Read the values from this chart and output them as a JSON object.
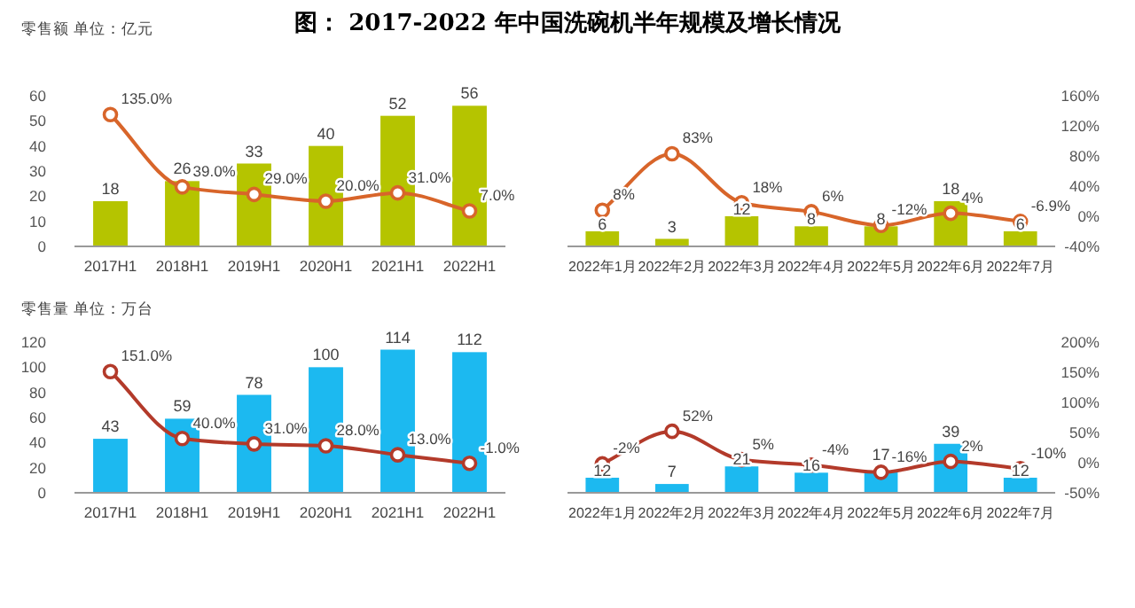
{
  "chart_data": [
    {
      "type": "bar",
      "title": "图：  2017-2022 年中国洗碗机半年规模及增长情况",
      "ylabel": "零售额 单位：亿元",
      "categories": [
        "2017H1",
        "2018H1",
        "2019H1",
        "2020H1",
        "2021H1",
        "2022H1"
      ],
      "series": [
        {
          "color": "#b5c400",
          "values": [
            18,
            26,
            33,
            40,
            52,
            56
          ],
          "value_labels": [
            "18",
            "26",
            "33",
            "40",
            "52",
            "56"
          ]
        },
        {
          "type": "line",
          "axis": "y2",
          "color": "#d8652a",
          "values": [
            135,
            39,
            29,
            20,
            31,
            7
          ],
          "value_labels": [
            "135.0%",
            "39.0%",
            "29.0%",
            "20.0%",
            "31.0%",
            "7.0%"
          ]
        }
      ],
      "ylim": [
        0,
        60
      ],
      "yticks": [
        0,
        10,
        20,
        30,
        40,
        50,
        60
      ],
      "y2lim": [
        -40,
        160
      ],
      "tick_labels": [
        "x",
        "y"
      ],
      "marker": "circle"
    },
    {
      "type": "bar",
      "categories": [
        "2022年1月",
        "2022年2月",
        "2022年3月",
        "2022年4月",
        "2022年5月",
        "2022年6月",
        "2022年7月"
      ],
      "series": [
        {
          "color": "#b5c400",
          "values": [
            6,
            3,
            12,
            8,
            8,
            18,
            6
          ],
          "value_labels": [
            "6",
            "3",
            "12",
            "8",
            "8",
            "18",
            "6"
          ]
        },
        {
          "type": "line",
          "axis": "y2",
          "color": "#d8652a",
          "values": [
            8,
            83,
            18,
            6,
            -12,
            4,
            -6.9
          ],
          "value_labels": [
            "8%",
            "83%",
            "18%",
            "6%",
            "-12%",
            "4%",
            "-6.9%"
          ]
        }
      ],
      "ylim": [
        0,
        60
      ],
      "y2lim": [
        -40,
        160
      ],
      "y2ticks": [
        {
          "value": -40,
          "label": "-40%"
        },
        {
          "value": 0,
          "label": "0%"
        },
        {
          "value": 40,
          "label": "40%"
        },
        {
          "value": 80,
          "label": "80%"
        },
        {
          "value": 120,
          "label": "120%"
        },
        {
          "value": 160,
          "label": "160%"
        }
      ],
      "tick_labels": [
        "x",
        "y2"
      ],
      "marker": "circle"
    },
    {
      "type": "bar",
      "ylabel": "零售量 单位：万台",
      "categories": [
        "2017H1",
        "2018H1",
        "2019H1",
        "2020H1",
        "2021H1",
        "2022H1"
      ],
      "series": [
        {
          "color": "#1cb9f0",
          "values": [
            43,
            59,
            78,
            100,
            114,
            112
          ],
          "value_labels": [
            "43",
            "59",
            "78",
            "100",
            "114",
            "112"
          ]
        },
        {
          "type": "line",
          "axis": "y2",
          "color": "#b33a2a",
          "values": [
            151,
            40,
            31,
            28,
            13,
            -1
          ],
          "value_labels": [
            "151.0%",
            "40.0%",
            "31.0%",
            "28.0%",
            "13.0%",
            "-1.0%"
          ]
        }
      ],
      "ylim": [
        0,
        120
      ],
      "yticks": [
        0,
        20,
        40,
        60,
        80,
        100,
        120
      ],
      "y2lim": [
        -50,
        200
      ],
      "tick_labels": [
        "x",
        "y"
      ],
      "marker": "circle"
    },
    {
      "type": "bar",
      "categories": [
        "2022年1月",
        "2022年2月",
        "2022年3月",
        "2022年4月",
        "2022年5月",
        "2022年6月",
        "2022年7月"
      ],
      "series": [
        {
          "color": "#1cb9f0",
          "values": [
            12,
            7,
            21,
            16,
            17,
            39,
            12
          ],
          "value_labels": [
            "12",
            "7",
            "21",
            "16",
            "17",
            "39",
            "12"
          ]
        },
        {
          "type": "line",
          "axis": "y2",
          "color": "#b33a2a",
          "values": [
            -2,
            52,
            5,
            -4,
            -16,
            2,
            -10
          ],
          "value_labels": [
            "-2%",
            "52%",
            "5%",
            "-4%",
            "-16%",
            "2%",
            "-10%"
          ]
        }
      ],
      "ylim": [
        0,
        120
      ],
      "y2lim": [
        -50,
        200
      ],
      "y2ticks": [
        {
          "value": -50,
          "label": "-50%"
        },
        {
          "value": 0,
          "label": "0%"
        },
        {
          "value": 50,
          "label": "50%"
        },
        {
          "value": 100,
          "label": "100%"
        },
        {
          "value": 150,
          "label": "150%"
        },
        {
          "value": 200,
          "label": "200%"
        }
      ],
      "tick_labels": [
        "x",
        "y2"
      ],
      "marker": "circle"
    }
  ]
}
